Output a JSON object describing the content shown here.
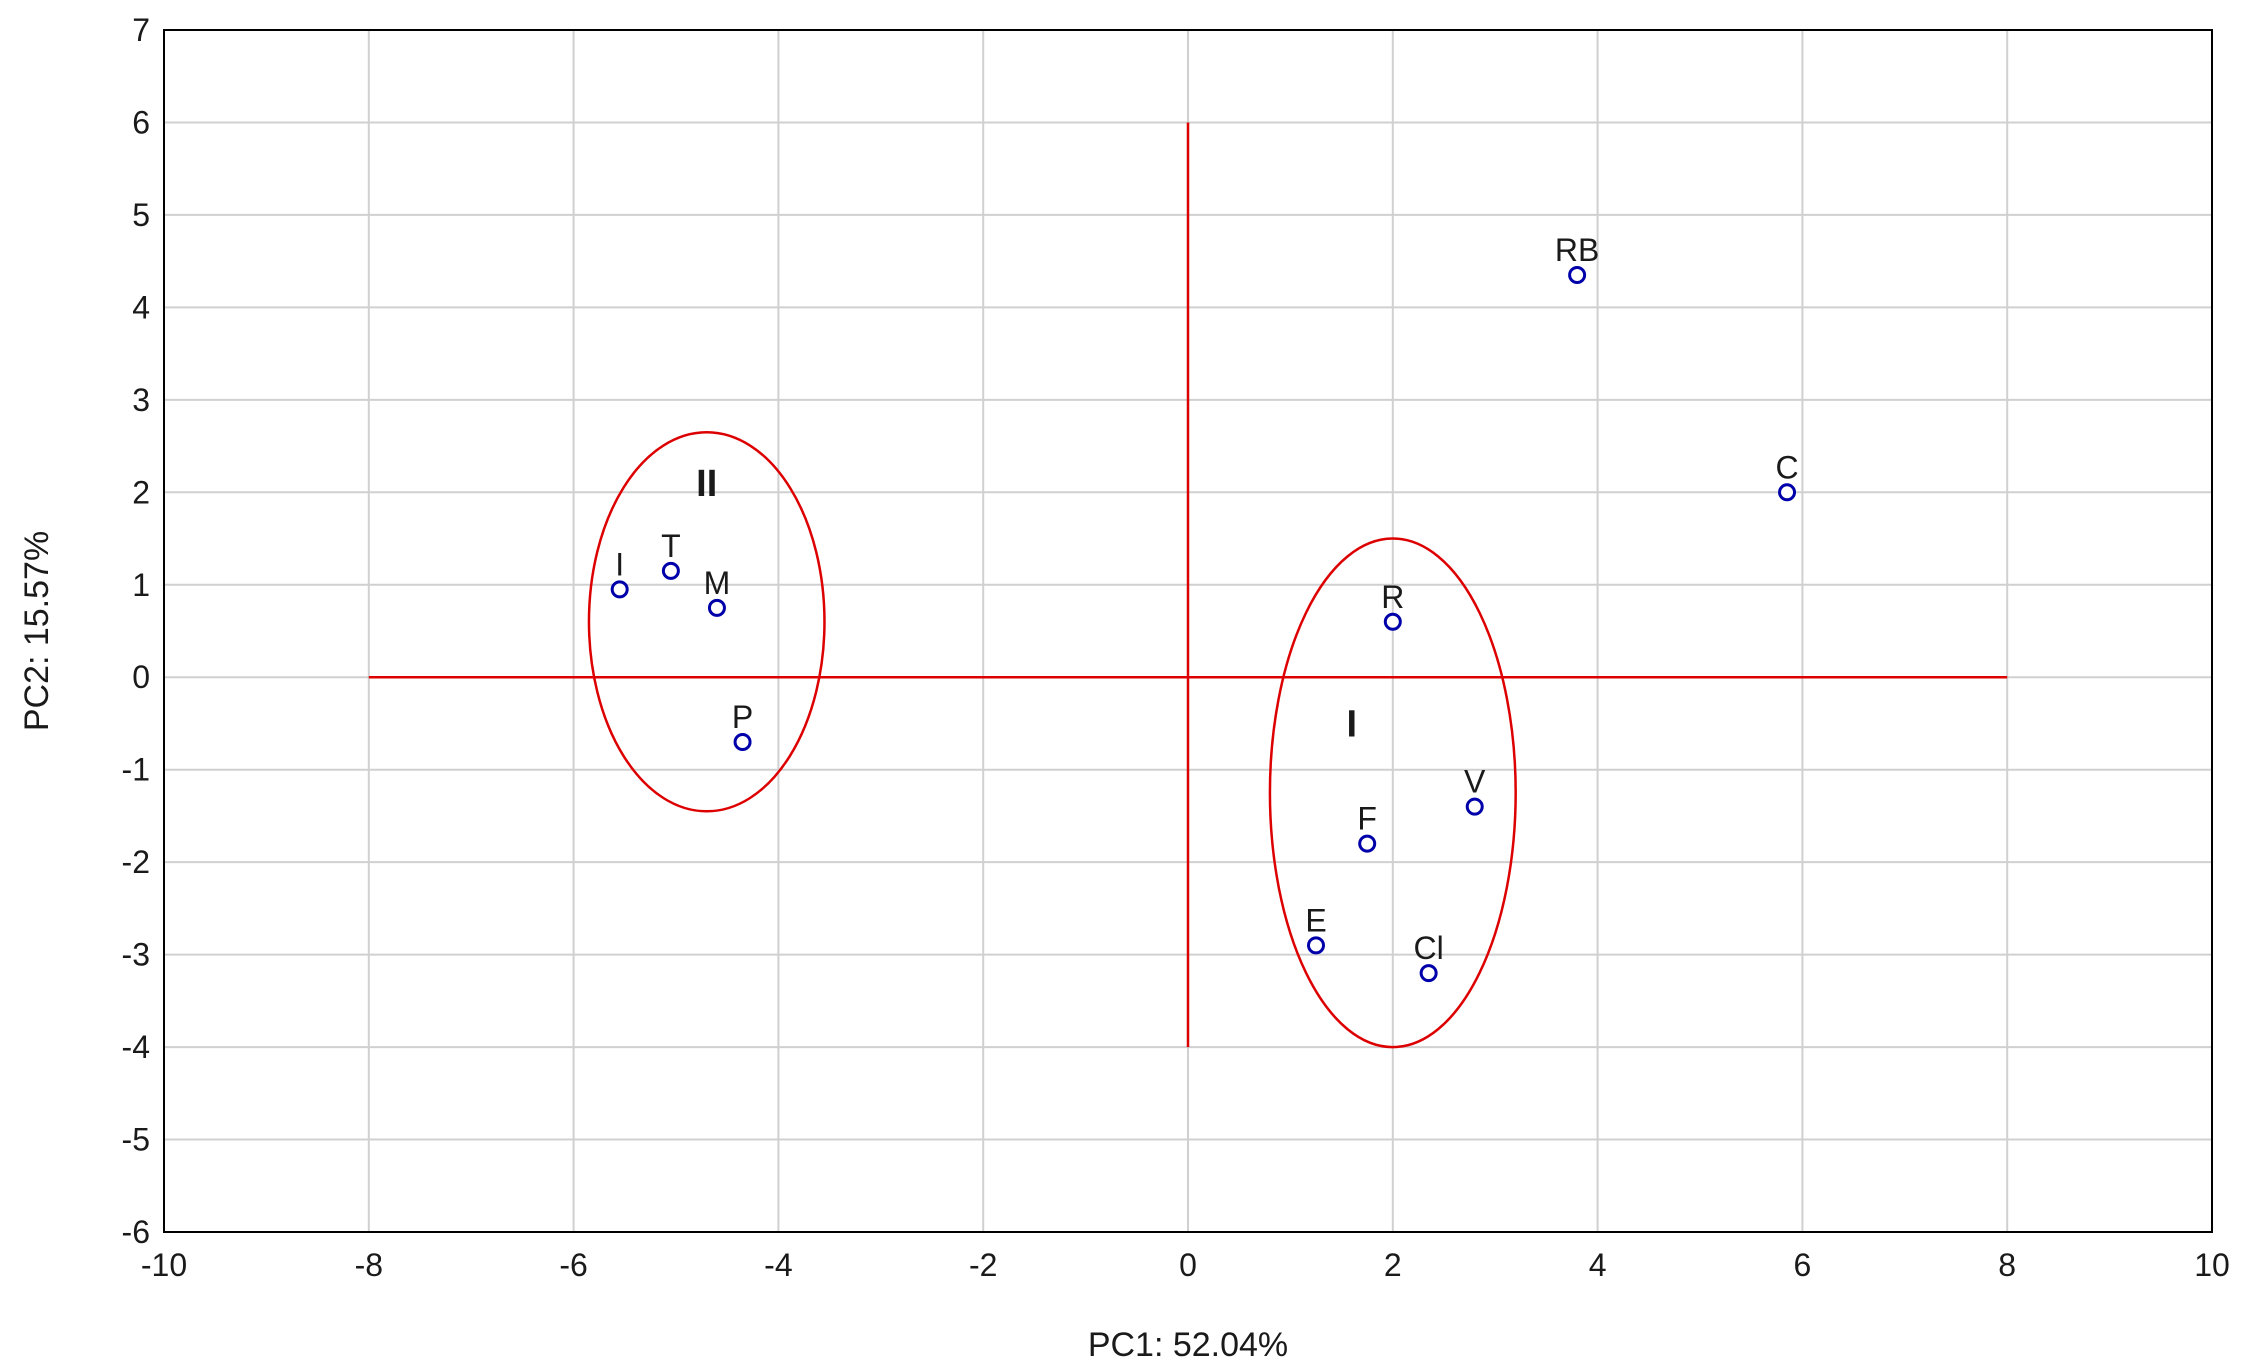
{
  "chart_data": {
    "type": "scatter",
    "title": "",
    "xlabel": "PC1: 52.04%",
    "ylabel": "PC2: 15.57%",
    "xlim": [
      -10,
      10
    ],
    "ylim": [
      -6,
      7
    ],
    "x_ticks": [
      -10,
      -8,
      -6,
      -4,
      -2,
      0,
      2,
      4,
      6,
      8,
      10
    ],
    "y_ticks": [
      7,
      6,
      5,
      4,
      3,
      2,
      1,
      0,
      -1,
      -2,
      -3,
      -4,
      -5,
      -6
    ],
    "grid": true,
    "point_color": "#0000aa",
    "reference_line_color": "#dd0000",
    "points": [
      {
        "label": "I",
        "x": -5.55,
        "y": 0.95
      },
      {
        "label": "T",
        "x": -5.05,
        "y": 1.15
      },
      {
        "label": "M",
        "x": -4.6,
        "y": 0.75
      },
      {
        "label": "P",
        "x": -4.35,
        "y": -0.7
      },
      {
        "label": "R",
        "x": 2.0,
        "y": 0.6
      },
      {
        "label": "V",
        "x": 2.8,
        "y": -1.4
      },
      {
        "label": "F",
        "x": 1.75,
        "y": -1.8
      },
      {
        "label": "E",
        "x": 1.25,
        "y": -2.9
      },
      {
        "label": "Cl",
        "x": 2.35,
        "y": -3.2
      },
      {
        "label": "RB",
        "x": 3.8,
        "y": 4.35
      },
      {
        "label": "C",
        "x": 5.85,
        "y": 2.0
      }
    ],
    "reference_lines": [
      {
        "orientation": "horizontal",
        "value": 0,
        "from": -8,
        "to": 8
      },
      {
        "orientation": "vertical",
        "value": 0,
        "from": -4,
        "to": 6
      }
    ],
    "clusters": [
      {
        "label": "II",
        "cx": -4.7,
        "cy": 0.6,
        "rx": 1.15,
        "ry": 2.05,
        "label_x": -4.7,
        "label_y": 2.1
      },
      {
        "label": "I",
        "cx": 2.0,
        "cy": -1.25,
        "rx": 1.2,
        "ry": 2.75,
        "label_x": 1.6,
        "label_y": -0.5
      }
    ]
  }
}
